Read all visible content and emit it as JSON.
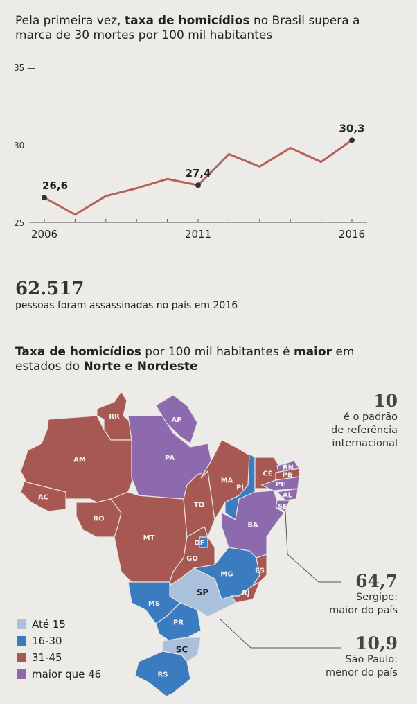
{
  "headline": {
    "pre": "Pela primeira vez, ",
    "bold": "taxa de homicídios",
    "post": " no Brasil supera a marca de 30 mortes por 100 mil habitantes"
  },
  "chart_data": {
    "type": "line",
    "title": "Pela primeira vez, taxa de homicídios no Brasil supera a marca de 30 mortes por 100 mil habitantes",
    "x": [
      2006,
      2007,
      2008,
      2009,
      2010,
      2011,
      2012,
      2013,
      2014,
      2015,
      2016
    ],
    "values": [
      26.6,
      25.5,
      26.7,
      27.2,
      27.8,
      27.4,
      29.4,
      28.6,
      29.8,
      28.9,
      30.3
    ],
    "ylim": [
      25,
      35
    ],
    "yticks": [
      "35",
      "30",
      "25"
    ],
    "xtick_labels": [
      "2006",
      "2011",
      "2016"
    ],
    "data_labels": [
      {
        "x": 2006,
        "text": "26,6"
      },
      {
        "x": 2011,
        "text": "27,4"
      },
      {
        "x": 2016,
        "text": "30,3"
      }
    ],
    "line_color": "#b5625e"
  },
  "stat": {
    "number": "62.517",
    "text": "pessoas foram assassinadas no país em 2016"
  },
  "map": {
    "title": {
      "b1": "Taxa de homicídios",
      "t1": " por 100 mil habitantes é ",
      "b2": "maior",
      "t2": " em estados do ",
      "b3": "Norte e Nordeste"
    },
    "colors": {
      "ate15": "#a9c1da",
      "16-30": "#3b7cc0",
      "31-45": "#a85852",
      "46+": "#8d6aae"
    },
    "states": [
      {
        "uf": "RR",
        "cat": "31-45"
      },
      {
        "uf": "AM",
        "cat": "31-45"
      },
      {
        "uf": "AC",
        "cat": "31-45"
      },
      {
        "uf": "RO",
        "cat": "31-45"
      },
      {
        "uf": "MT",
        "cat": "31-45"
      },
      {
        "uf": "PA",
        "cat": "46+"
      },
      {
        "uf": "AP",
        "cat": "46+"
      },
      {
        "uf": "TO",
        "cat": "31-45"
      },
      {
        "uf": "MA",
        "cat": "31-45"
      },
      {
        "uf": "PI",
        "cat": "16-30"
      },
      {
        "uf": "CE",
        "cat": "31-45"
      },
      {
        "uf": "RN",
        "cat": "46+"
      },
      {
        "uf": "PB",
        "cat": "31-45"
      },
      {
        "uf": "PE",
        "cat": "46+"
      },
      {
        "uf": "AL",
        "cat": "46+"
      },
      {
        "uf": "SE",
        "cat": "46+"
      },
      {
        "uf": "BA",
        "cat": "46+"
      },
      {
        "uf": "GO",
        "cat": "31-45"
      },
      {
        "uf": "DF",
        "cat": "16-30"
      },
      {
        "uf": "MG",
        "cat": "16-30"
      },
      {
        "uf": "ES",
        "cat": "31-45"
      },
      {
        "uf": "RJ",
        "cat": "31-45"
      },
      {
        "uf": "SP",
        "cat": "ate15"
      },
      {
        "uf": "MS",
        "cat": "16-30"
      },
      {
        "uf": "PR",
        "cat": "16-30"
      },
      {
        "uf": "SC",
        "cat": "ate15"
      },
      {
        "uf": "RS",
        "cat": "16-30"
      }
    ],
    "legend": [
      {
        "label": "Até 15",
        "cat": "ate15"
      },
      {
        "label": "16-30",
        "cat": "16-30"
      },
      {
        "label": "31-45",
        "cat": "31-45"
      },
      {
        "label": "maior que 46",
        "cat": "46+"
      }
    ],
    "notes": [
      {
        "number": "10",
        "lines": [
          "é o padrão",
          "de referência",
          "internacional"
        ]
      },
      {
        "number": "64,7",
        "lines": [
          "Sergipe:",
          "maior do país"
        ]
      },
      {
        "number": "10,9",
        "lines": [
          "São Paulo:",
          "menor do país"
        ]
      }
    ]
  }
}
